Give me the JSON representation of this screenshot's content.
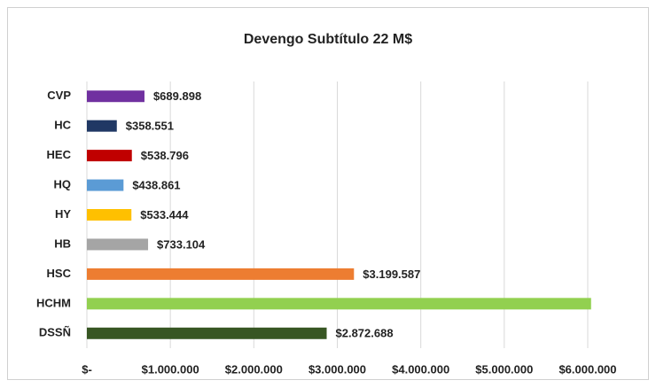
{
  "chart_data": {
    "type": "hbar",
    "title": "Devengo Subtítulo 22 M$",
    "categories": [
      "CVP",
      "HC",
      "HEC",
      "HQ",
      "HY",
      "HB",
      "HSC",
      "HCHM",
      "DSSÑ"
    ],
    "values": [
      689898,
      358551,
      538796,
      438861,
      533444,
      733104,
      3199587,
      6040000,
      2872688
    ],
    "value_labels": [
      "$689.898",
      "$358.551",
      "$538.796",
      "$438.861",
      "$533.444",
      "$733.104",
      "$3.199.587",
      null,
      "$2.872.688"
    ],
    "colors": [
      "#7030a0",
      "#203864",
      "#c00000",
      "#5b9bd5",
      "#ffc000",
      "#a5a5a5",
      "#ed7d31",
      "#92d050",
      "#375623"
    ],
    "xlim": [
      0,
      6000000
    ],
    "xticks": [
      {
        "value": 0,
        "label": "$-"
      },
      {
        "value": 1000000,
        "label": "$1.000.000"
      },
      {
        "value": 2000000,
        "label": "$2.000.000"
      },
      {
        "value": 3000000,
        "label": "$3.000.000"
      },
      {
        "value": 4000000,
        "label": "$4.000.000"
      },
      {
        "value": 5000000,
        "label": "$5.000.000"
      },
      {
        "value": 6000000,
        "label": "$6.000.000"
      }
    ],
    "grid": true
  }
}
